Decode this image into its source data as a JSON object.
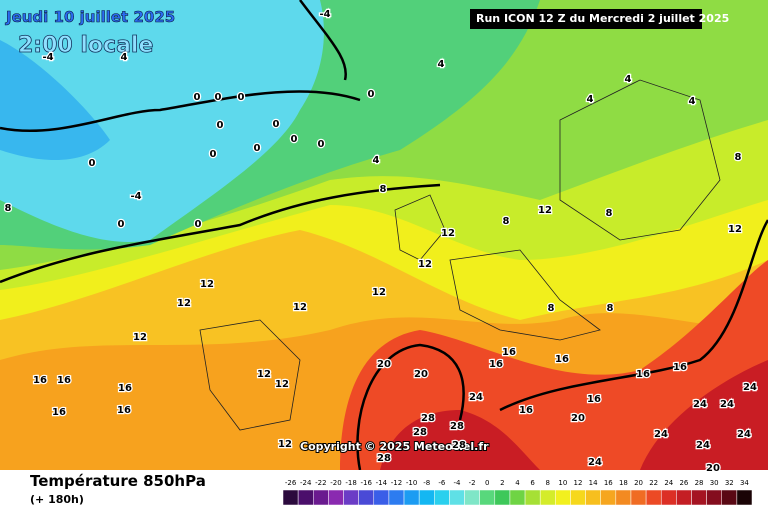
{
  "header": {
    "date": "Jeudi 10 juillet 2025",
    "time": "2:00 locale",
    "run": "Run ICON 12 Z du Mercredi 2 juillet 2025",
    "copyright": "Copyright © 2025 Meteociel.fr"
  },
  "footer": {
    "title": "Température 850hPa",
    "lead": "(+ 180h)"
  },
  "scale": {
    "labels": [
      -26,
      -24,
      -22,
      -20,
      -18,
      -16,
      -14,
      -12,
      -10,
      -8,
      -6,
      -4,
      -2,
      0,
      2,
      4,
      6,
      8,
      10,
      12,
      14,
      16,
      18,
      20,
      22,
      24,
      26,
      28,
      30,
      32,
      34
    ],
    "colors": [
      "#2b0a3d",
      "#4b0f6b",
      "#6a1a8f",
      "#8a2ab0",
      "#6b3cc6",
      "#4a4ad6",
      "#3a5ee8",
      "#2d7cf0",
      "#1c9cf2",
      "#14b7f2",
      "#2ad0ee",
      "#5fe0e6",
      "#7fe6c7",
      "#58d87c",
      "#3ec85a",
      "#6fd444",
      "#a6e035",
      "#d4ec2a",
      "#f2f01e",
      "#f6d81c",
      "#f7bf1e",
      "#f6a61f",
      "#f38a21",
      "#f06c23",
      "#ec4a25",
      "#dc2f25",
      "#c41e24",
      "#a51422",
      "#840d1e",
      "#5a0814",
      "#1a0406"
    ]
  },
  "map_labels": [
    -4,
    4,
    -4,
    0,
    0,
    0,
    0,
    0,
    0,
    0,
    0,
    0,
    0,
    0,
    -4,
    0,
    0,
    4,
    4,
    4,
    4,
    4,
    8,
    8,
    8,
    8,
    12,
    8,
    12,
    12,
    12,
    12,
    12,
    12,
    12,
    12,
    8,
    8,
    16,
    16,
    16,
    20,
    20,
    16,
    16,
    16,
    12,
    12,
    16,
    16,
    24,
    16,
    20,
    16,
    16,
    16,
    24,
    24,
    24,
    28,
    28,
    28,
    28,
    24,
    24,
    24,
    24,
    20,
    12,
    28
  ]
}
